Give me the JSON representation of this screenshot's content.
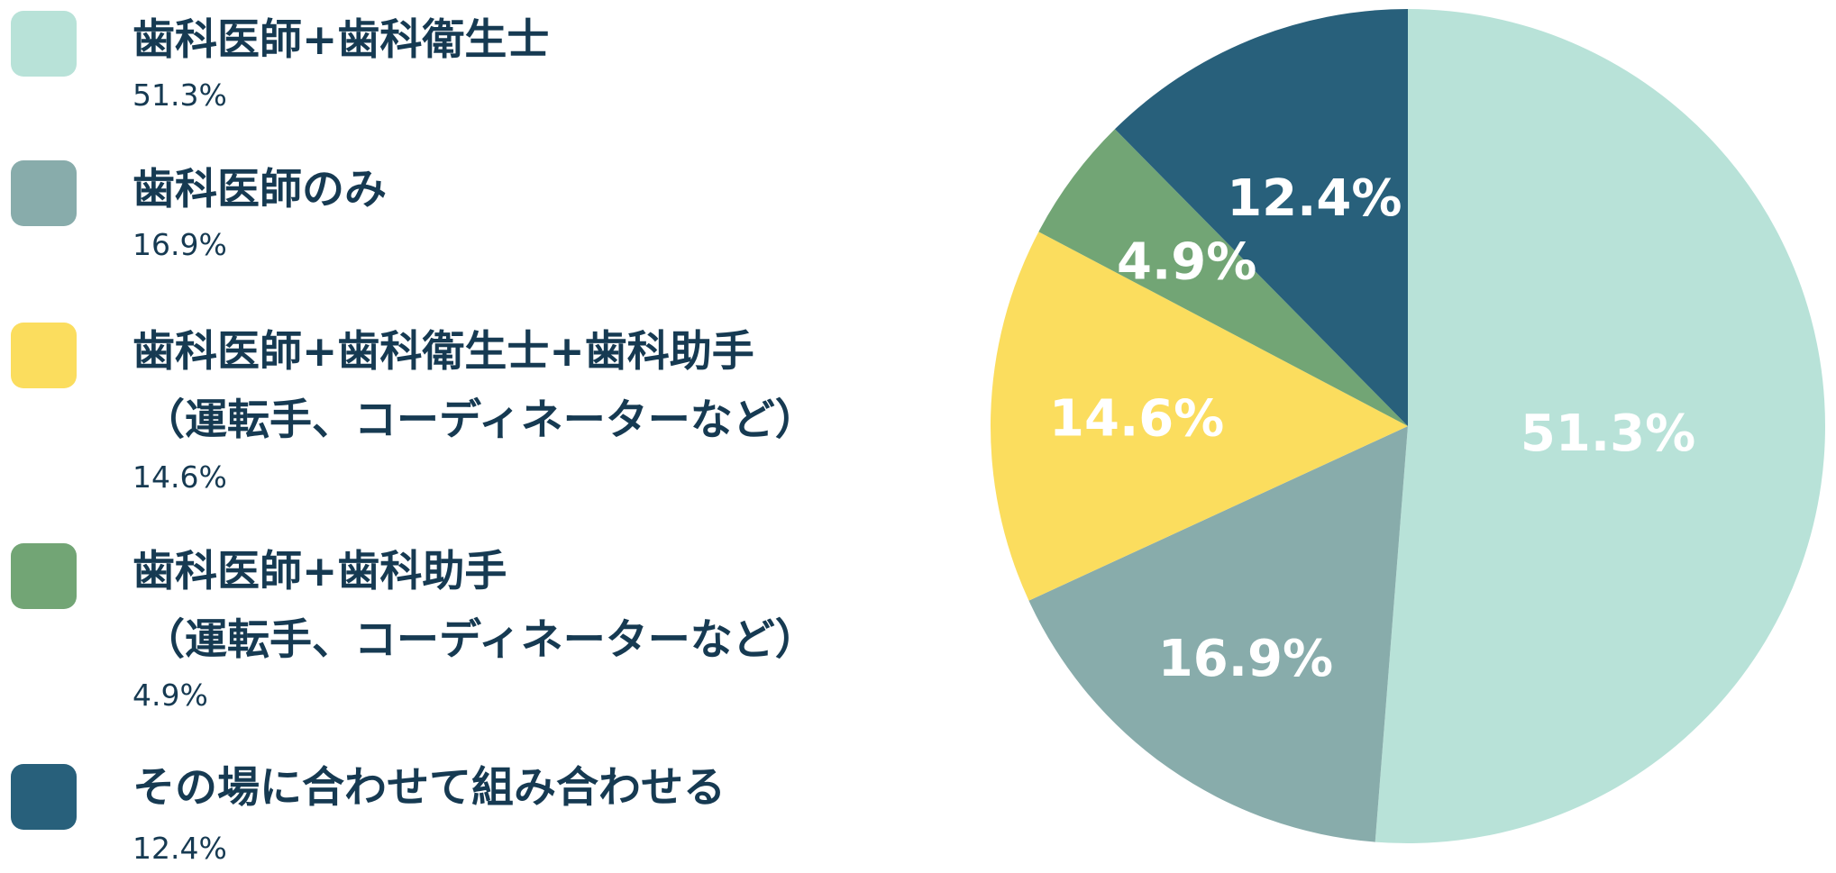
{
  "chart_data": {
    "type": "pie",
    "slices": [
      {
        "label": "歯科医師+歯科衛生士",
        "label_line2": "",
        "value": 51.3,
        "value_label": "51.3%",
        "color": "#b8e2d8"
      },
      {
        "label": "歯科医師のみ",
        "label_line2": "",
        "value": 16.9,
        "value_label": "16.9%",
        "color": "#88acab"
      },
      {
        "label": "歯科医師+歯科衛生士+歯科助手",
        "label_line2": "（運転手、コーディネーターなど）",
        "value": 14.6,
        "value_label": "14.6%",
        "color": "#fbdd5e"
      },
      {
        "label": "歯科医師+歯科助手",
        "label_line2": "（運転手、コーディネーターなど）",
        "value": 4.9,
        "value_label": "4.9%",
        "color": "#72a575"
      },
      {
        "label": "その場に合わせて組み合わせる",
        "label_line2": "",
        "value": 12.4,
        "value_label": "12.4%",
        "color": "#28607b"
      }
    ],
    "legend_position": "left",
    "start_angle": "12 o'clock",
    "direction": "clockwise"
  }
}
